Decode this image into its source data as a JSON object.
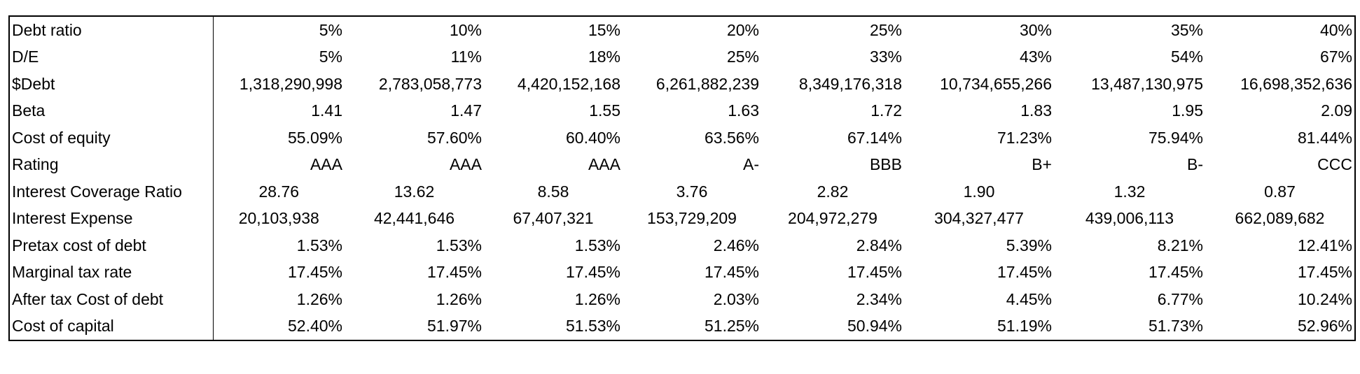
{
  "table": {
    "rows": [
      [
        "Debt ratio",
        "5%",
        "10%",
        "15%",
        "20%",
        "25%",
        "30%",
        "35%",
        "40%"
      ],
      [
        "D/E",
        "5%",
        "11%",
        "18%",
        "25%",
        "33%",
        "43%",
        "54%",
        "67%"
      ],
      [
        "$Debt",
        "1,318,290,998",
        "2,783,058,773",
        "4,420,152,168",
        "6,261,882,239",
        "8,349,176,318",
        "10,734,655,266",
        "13,487,130,975",
        "16,698,352,636"
      ],
      [
        "Beta",
        "1.41",
        "1.47",
        "1.55",
        "1.63",
        "1.72",
        "1.83",
        "1.95",
        "2.09"
      ],
      [
        "Cost of equity",
        "55.09%",
        "57.60%",
        "60.40%",
        "63.56%",
        "67.14%",
        "71.23%",
        "75.94%",
        "81.44%"
      ],
      [
        "Rating",
        "AAA",
        "AAA",
        "AAA",
        "A-",
        "BBB",
        "B+",
        "B-",
        "CCC"
      ],
      [
        "Interest Coverage Ratio",
        "28.76",
        "13.62",
        "8.58",
        "3.76",
        "2.82",
        "1.90",
        "1.32",
        "0.87"
      ],
      [
        "Interest Expense",
        "20,103,938",
        "42,441,646",
        "67,407,321",
        "153,729,209",
        "204,972,279",
        "304,327,477",
        "439,006,113",
        "662,089,682"
      ],
      [
        "Pretax cost of debt",
        "1.53%",
        "1.53%",
        "1.53%",
        "2.46%",
        "2.84%",
        "5.39%",
        "8.21%",
        "12.41%"
      ],
      [
        "Marginal tax rate",
        "17.45%",
        "17.45%",
        "17.45%",
        "17.45%",
        "17.45%",
        "17.45%",
        "17.45%",
        "17.45%"
      ],
      [
        "After tax Cost of debt",
        "1.26%",
        "1.26%",
        "1.26%",
        "2.03%",
        "2.34%",
        "4.45%",
        "6.77%",
        "10.24%"
      ],
      [
        "Cost of capital",
        "52.40%",
        "51.97%",
        "51.53%",
        "51.25%",
        "50.94%",
        "51.19%",
        "51.73%",
        "52.96%"
      ]
    ]
  }
}
